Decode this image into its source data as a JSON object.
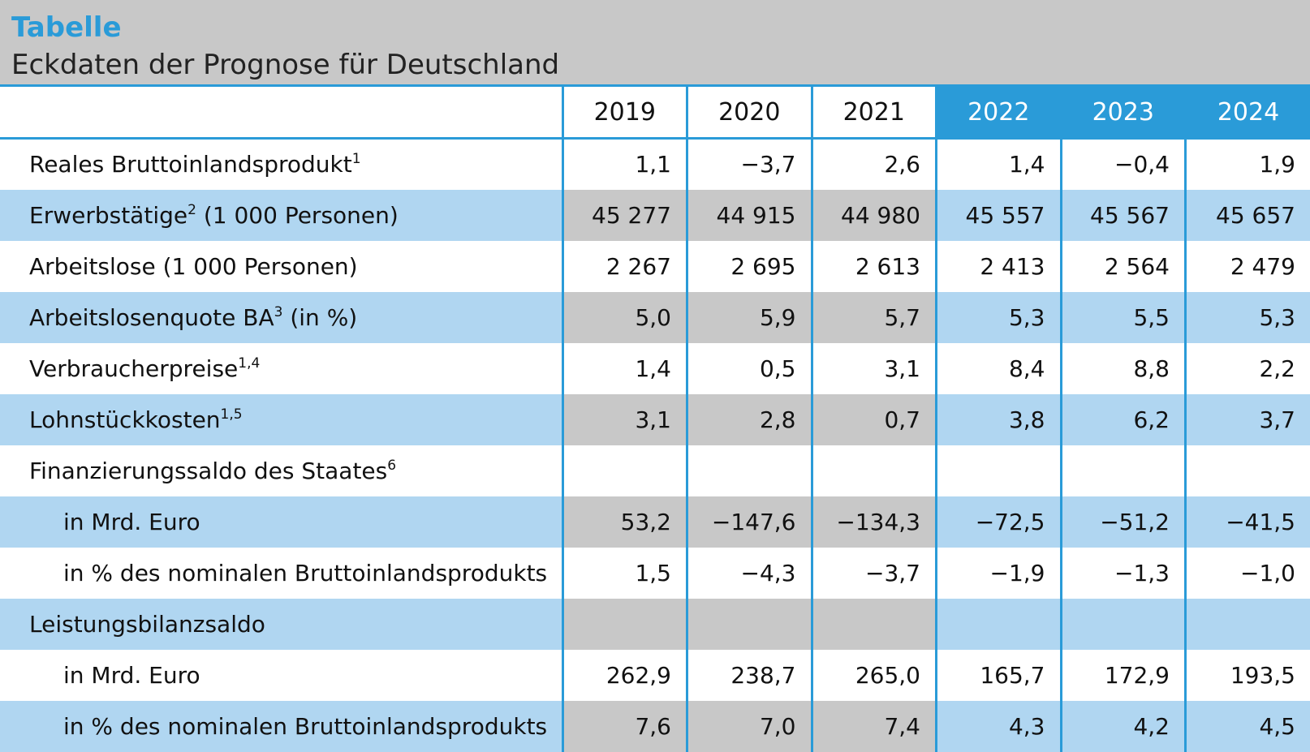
{
  "header": {
    "kicker": "Tabelle",
    "title": "Eckdaten der Prognose für Deutschland"
  },
  "colors": {
    "accent": "#2a9bd8",
    "shade_blue": "#b0d6f1",
    "shade_grey": "#c8c8c8"
  },
  "columns": [
    "2019",
    "2020",
    "2021",
    "2022",
    "2023",
    "2024"
  ],
  "rows": [
    {
      "label": "Reales Bruttoinlandsprodukt",
      "sup": "1",
      "values": [
        "1,1",
        "−3,7",
        "2,6",
        "1,4",
        "−0,4",
        "1,9"
      ]
    },
    {
      "label": "Erwerbstätige",
      "sup": "2",
      "suffix": " (1 000 Personen)",
      "values": [
        "45 277",
        "44 915",
        "44 980",
        "45 557",
        "45 567",
        "45 657"
      ]
    },
    {
      "label": "Arbeitslose (1 000 Personen)",
      "values": [
        "2 267",
        "2 695",
        "2 613",
        "2 413",
        "2 564",
        "2 479"
      ]
    },
    {
      "label": "Arbeitslosenquote BA",
      "sup": "3",
      "suffix": " (in %)",
      "values": [
        "5,0",
        "5,9",
        "5,7",
        "5,3",
        "5,5",
        "5,3"
      ]
    },
    {
      "label": "Verbraucherpreise",
      "sup": "1,4",
      "values": [
        "1,4",
        "0,5",
        "3,1",
        "8,4",
        "8,8",
        "2,2"
      ]
    },
    {
      "label": "Lohnstückkosten",
      "sup": "1,5",
      "values": [
        "3,1",
        "2,8",
        "0,7",
        "3,8",
        "6,2",
        "3,7"
      ]
    },
    {
      "label": "Finanzierungssaldo des Staates",
      "sup": "6",
      "values": [
        "",
        "",
        "",
        "",
        "",
        ""
      ]
    },
    {
      "label": "in Mrd. Euro",
      "indent": true,
      "values": [
        "53,2",
        "−147,6",
        "−134,3",
        "−72,5",
        "−51,2",
        "−41,5"
      ]
    },
    {
      "label": "in % des nominalen Bruttoinlandsprodukts",
      "indent": true,
      "values": [
        "1,5",
        "−4,3",
        "−3,7",
        "−1,9",
        "−1,3",
        "−1,0"
      ]
    },
    {
      "label": "Leistungsbilanzsaldo",
      "values": [
        "",
        "",
        "",
        "",
        "",
        ""
      ]
    },
    {
      "label": "in Mrd. Euro",
      "indent": true,
      "values": [
        "262,9",
        "238,7",
        "265,0",
        "165,7",
        "172,9",
        "193,5"
      ]
    },
    {
      "label": "in % des nominalen Bruttoinlandsprodukts",
      "indent": true,
      "values": [
        "7,6",
        "7,0",
        "7,4",
        "4,3",
        "4,2",
        "4,5"
      ]
    }
  ]
}
